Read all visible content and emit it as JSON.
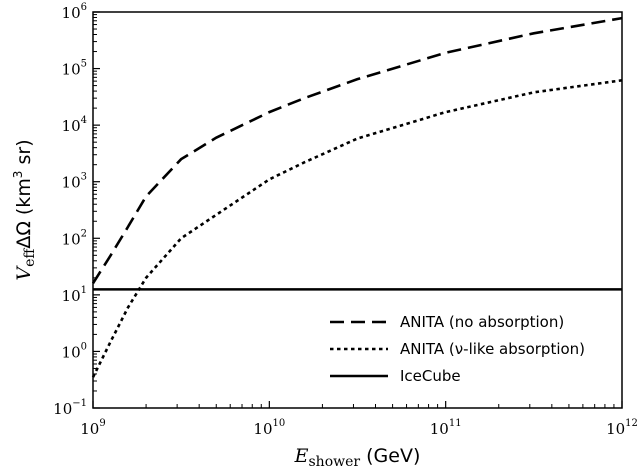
{
  "chart_data": {
    "type": "line",
    "xscale": "log",
    "yscale": "log",
    "xlim": [
      1000000000.0,
      1000000000000.0
    ],
    "ylim": [
      0.1,
      1000000.0
    ],
    "xlabel": {
      "main": "E",
      "sub": "shower",
      "unit": " (GeV)"
    },
    "ylabel": {
      "main": "V",
      "sub": "eff",
      "rest": "ΔΩ (km",
      "sup": "3",
      "end": " sr)"
    },
    "x_ticks": [
      {
        "base": "10",
        "exp": "9"
      },
      {
        "base": "10",
        "exp": "10"
      },
      {
        "base": "10",
        "exp": "11"
      },
      {
        "base": "10",
        "exp": "12"
      }
    ],
    "y_ticks": [
      {
        "base": "10",
        "exp": "−1"
      },
      {
        "base": "10",
        "exp": "0"
      },
      {
        "base": "10",
        "exp": "1"
      },
      {
        "base": "10",
        "exp": "2"
      },
      {
        "base": "10",
        "exp": "3"
      },
      {
        "base": "10",
        "exp": "4"
      },
      {
        "base": "10",
        "exp": "5"
      },
      {
        "base": "10",
        "exp": "6"
      }
    ],
    "grid": false,
    "legend_position": "lower-right",
    "series": [
      {
        "name": "ANITA (no absorption)",
        "style": "dashed",
        "color": "#000000",
        "x": [
          1000000000.0,
          1260000000.0,
          1580000000.0,
          2000000000.0,
          3160000000.0,
          5000000000.0,
          10000000000.0,
          15800000000.0,
          31600000000.0,
          100000000000.0,
          316000000000.0,
          1000000000000.0
        ],
        "y": [
          16,
          50,
          160,
          550,
          2500,
          6000,
          17000,
          30000,
          65000,
          190000,
          420000,
          780000
        ]
      },
      {
        "name": "ANITA (ν-like absorption)",
        "style": "dotted",
        "color": "#000000",
        "x": [
          1000000000.0,
          1260000000.0,
          1580000000.0,
          2000000000.0,
          3160000000.0,
          5000000000.0,
          10000000000.0,
          15800000000.0,
          31600000000.0,
          100000000000.0,
          316000000000.0,
          1000000000000.0
        ],
        "y": [
          0.35,
          1.5,
          6,
          20,
          100,
          260,
          1100,
          2200,
          5800,
          17000,
          38000,
          62000
        ]
      },
      {
        "name": "IceCube",
        "style": "solid",
        "color": "#000000",
        "x": [
          1000000000.0,
          1000000000000.0
        ],
        "y": [
          12.5,
          12.5
        ]
      }
    ]
  }
}
